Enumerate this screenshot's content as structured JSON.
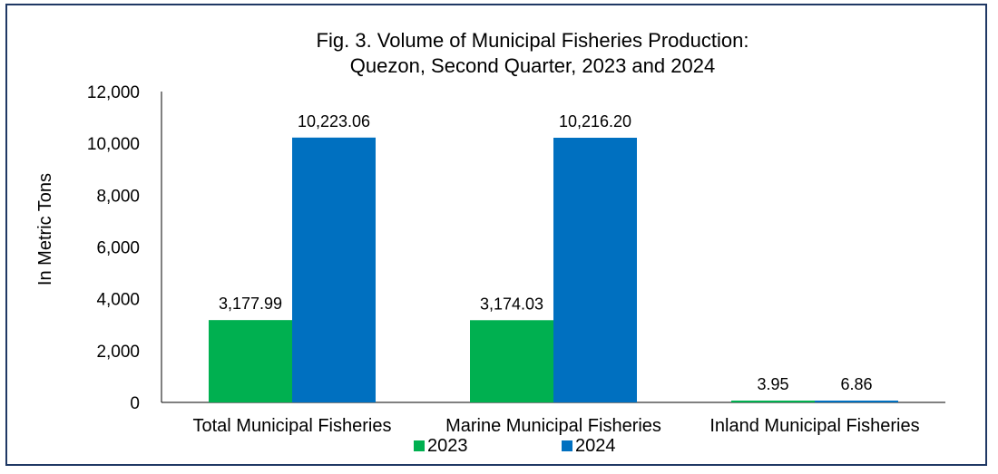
{
  "chart_data": {
    "type": "bar",
    "title_lines": [
      "Fig. 3. Volume of Municipal Fisheries  Production:",
      "Quezon, Second Quarter, 2023 and 2024"
    ],
    "ylabel": "In Metric Tons",
    "xlabel": "",
    "categories": [
      "Total Municipal Fisheries",
      "Marine Municipal Fisheries",
      "Inland Municipal Fisheries"
    ],
    "series": [
      {
        "name": "2023",
        "color": "#00b050",
        "values": [
          3177.99,
          3174.03,
          3.95
        ],
        "labels": [
          "3,177.99",
          "3,174.03",
          "3.95"
        ]
      },
      {
        "name": "2024",
        "color": "#0070c0",
        "values": [
          10223.06,
          10216.2,
          6.86
        ],
        "labels": [
          "10,223.06",
          "10,216.20",
          "6.86"
        ]
      }
    ],
    "ylim": [
      0,
      12000
    ],
    "yticks": [
      0,
      2000,
      4000,
      6000,
      8000,
      10000,
      12000
    ],
    "ytick_labels": [
      "0",
      "2,000",
      "4,000",
      "6,000",
      "8,000",
      "10,000",
      "12,000"
    ],
    "grid": false,
    "legend_position": "bottom-center"
  }
}
